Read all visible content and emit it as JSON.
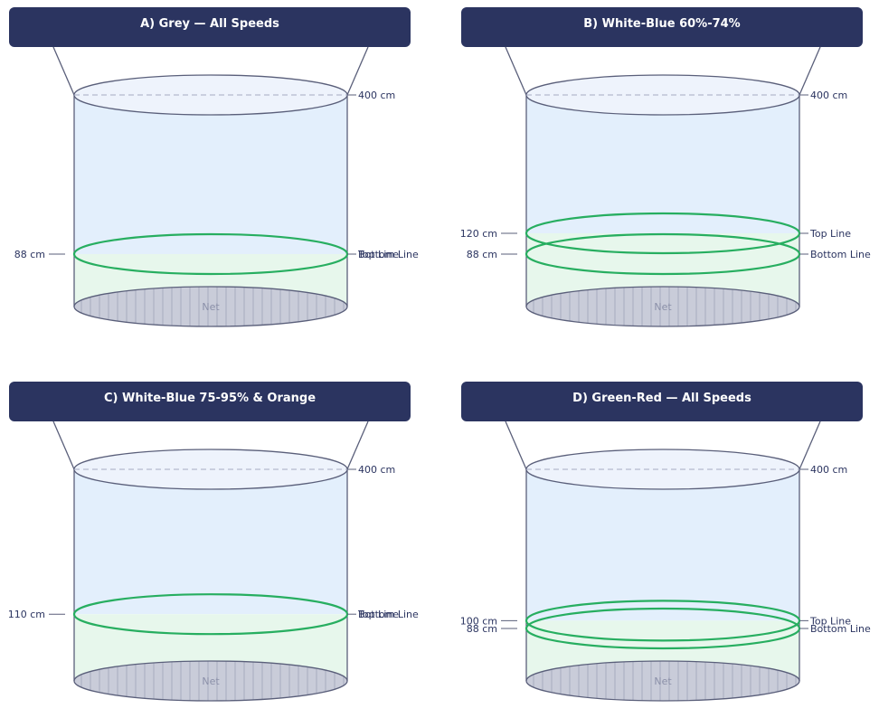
{
  "panels": [
    {
      "title": "A) Grey — All Speeds",
      "top_label": "400 cm",
      "net_label": "Net",
      "lines": [
        {
          "value": 88,
          "left_label": "88 cm",
          "right_labels": [
            "Top Line",
            "Bottom Line"
          ]
        }
      ]
    },
    {
      "title": "B) White-Blue  60%-74%",
      "top_label": "400 cm",
      "net_label": "Net",
      "lines": [
        {
          "value": 120,
          "left_label": "120 cm",
          "right_labels": [
            "Top Line"
          ]
        },
        {
          "value": 88,
          "left_label": "88 cm",
          "right_labels": [
            "Bottom Line"
          ]
        }
      ]
    },
    {
      "title": "C) White-Blue 75-95% & Orange",
      "top_label": "400 cm",
      "net_label": "Net",
      "lines": [
        {
          "value": 110,
          "left_label": "110 cm",
          "right_labels": [
            "Top Line",
            "Bottom Line"
          ]
        }
      ]
    },
    {
      "title": "D) Green-Red — All Speeds",
      "top_label": "400 cm",
      "net_label": "Net",
      "lines": [
        {
          "value": 100,
          "left_label": "100 cm",
          "right_labels": [
            "Top Line"
          ]
        },
        {
          "value": 88,
          "left_label": "88 cm",
          "right_labels": [
            "Bottom Line"
          ]
        }
      ]
    }
  ],
  "colors": {
    "header": "#2b3460",
    "water": "#e3effc",
    "lower_fill": "#e7f7ec",
    "line": "#27ae60",
    "outline": "#5a5f7a",
    "net": "#c9ccd9",
    "label": "#2b3460"
  }
}
